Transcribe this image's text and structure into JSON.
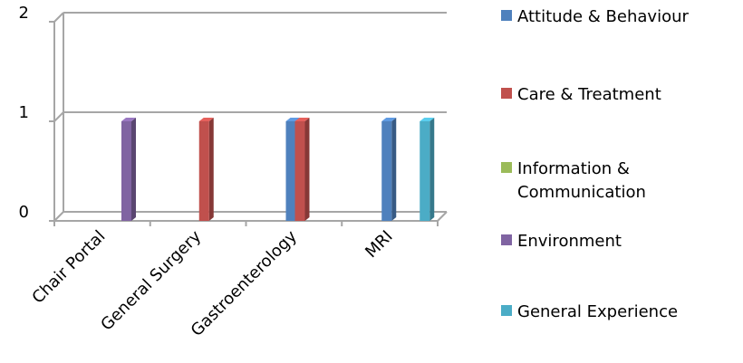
{
  "chart_data": {
    "type": "bar",
    "title": "",
    "xlabel": "",
    "ylabel": "",
    "ylim": [
      0,
      2
    ],
    "yticks": [
      "0",
      "1",
      "2"
    ],
    "categories": [
      "Chair Portal",
      "General Surgery",
      "Gastroenterology",
      "MRI"
    ],
    "series": [
      {
        "name": "Attitude & Behaviour",
        "color": "#4F81BD",
        "values": [
          0,
          0,
          1,
          1
        ]
      },
      {
        "name": "Care & Treatment",
        "color": "#C0504D",
        "values": [
          0,
          1,
          1,
          0
        ]
      },
      {
        "name": "Information &\nCommunication",
        "color": "#9BBB59",
        "values": [
          0,
          0,
          0,
          0
        ]
      },
      {
        "name": "Environment",
        "color": "#8064A2",
        "values": [
          1,
          0,
          0,
          0
        ]
      },
      {
        "name": "General Experience",
        "color": "#4BACC6",
        "values": [
          0,
          0,
          0,
          1
        ]
      }
    ],
    "grid": true,
    "style": "3d",
    "legend_position": "right"
  }
}
